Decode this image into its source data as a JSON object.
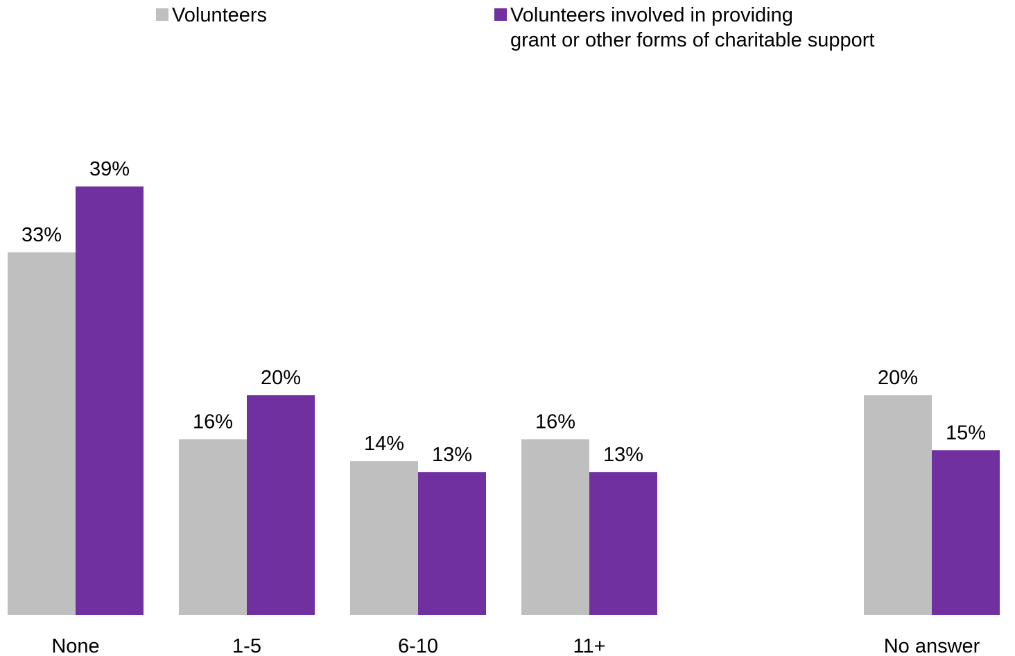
{
  "chart_data": {
    "type": "bar",
    "categories": [
      "None",
      "1-5",
      "6-10",
      "11+",
      "",
      "No answer"
    ],
    "series": [
      {
        "name": "Volunteers",
        "values": [
          33,
          16,
          14,
          16,
          null,
          20
        ],
        "labels": [
          "33%",
          "16%",
          "14%",
          "16%",
          "",
          "20%"
        ],
        "color": "#bfbfbf"
      },
      {
        "name": "Volunteers involved in providing grant or other forms of charitable support",
        "name_lines": [
          "Volunteers involved in providing",
          "grant or other forms of charitable support"
        ],
        "values": [
          39,
          20,
          13,
          13,
          null,
          15
        ],
        "labels": [
          "39%",
          "20%",
          "13%",
          "13%",
          "",
          "15%"
        ],
        "color": "#7030a0"
      }
    ],
    "title": "",
    "xlabel": "",
    "ylabel": "",
    "ylim": [
      0,
      40
    ],
    "grid": false,
    "legend": "top"
  }
}
